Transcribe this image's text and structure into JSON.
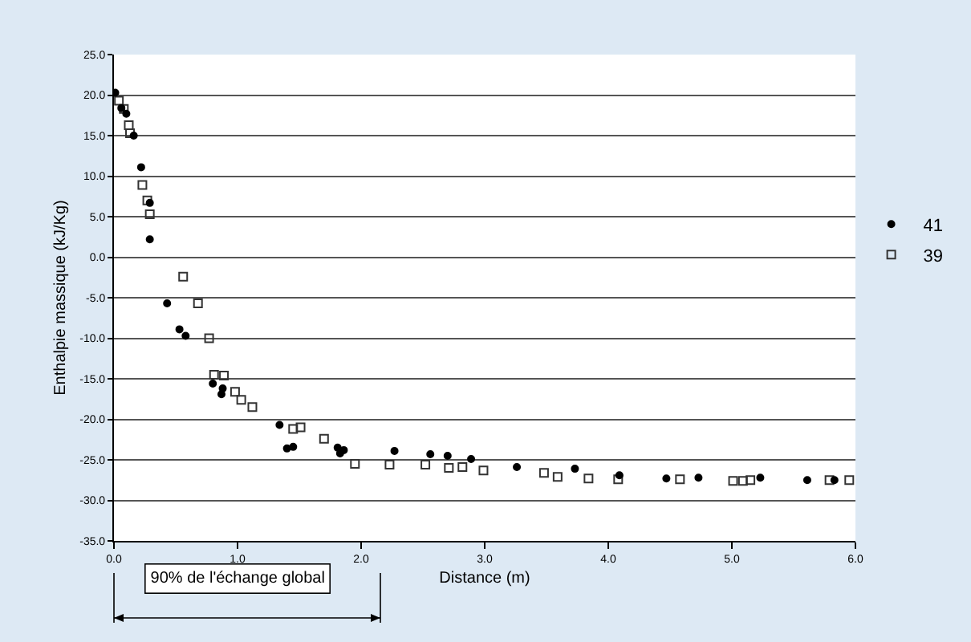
{
  "chart_data": {
    "type": "scatter",
    "xlabel": "Distance (m)",
    "ylabel": "Enthalpie massique (kJ/Kg)",
    "xlim": [
      0,
      6
    ],
    "ylim": [
      -35,
      25
    ],
    "xticks": [
      {
        "value": 0,
        "label": "0.0"
      },
      {
        "value": 1,
        "label": "1.0"
      },
      {
        "value": 2,
        "label": "2.0"
      },
      {
        "value": 3,
        "label": "3.0"
      },
      {
        "value": 4,
        "label": "4.0"
      },
      {
        "value": 5,
        "label": "5.0"
      },
      {
        "value": 6,
        "label": "6.0"
      }
    ],
    "yticks": [
      {
        "value": -35,
        "label": "-35.0"
      },
      {
        "value": -30,
        "label": "-30.0"
      },
      {
        "value": -25,
        "label": "-25.0"
      },
      {
        "value": -20,
        "label": "-20.0"
      },
      {
        "value": -15,
        "label": "-15.0"
      },
      {
        "value": -10,
        "label": "-10.0"
      },
      {
        "value": -5,
        "label": "-5.0"
      },
      {
        "value": 0,
        "label": "0.0"
      },
      {
        "value": 5,
        "label": "5.0"
      },
      {
        "value": 10,
        "label": "10.0"
      },
      {
        "value": 15,
        "label": "15.0"
      },
      {
        "value": 20,
        "label": "20.0"
      },
      {
        "value": 25,
        "label": "25.0"
      }
    ],
    "grid": "y",
    "legend": "right",
    "annotations": [
      "90% de l'échange global"
    ],
    "series": [
      {
        "name": "41",
        "color": "#000000",
        "marker": "circle",
        "x": [
          0.01,
          0.06,
          0.1,
          0.16,
          0.22,
          0.29,
          0.29,
          0.43,
          0.53,
          0.58,
          0.8,
          0.88,
          0.87,
          1.34,
          1.4,
          1.45,
          1.81,
          1.83,
          1.86,
          2.27,
          2.56,
          2.7,
          2.89,
          3.26,
          3.73,
          4.09,
          4.47,
          4.73,
          5.23,
          5.61,
          5.83
        ],
        "values": [
          20.3,
          18.4,
          17.7,
          15.0,
          11.1,
          6.7,
          2.2,
          -5.7,
          -8.9,
          -9.7,
          -15.6,
          -16.2,
          -16.9,
          -20.7,
          -23.6,
          -23.4,
          -23.5,
          -24.2,
          -23.8,
          -23.9,
          -24.3,
          -24.5,
          -24.9,
          -25.9,
          -26.1,
          -26.9,
          -27.3,
          -27.2,
          -27.2,
          -27.5,
          -27.5
        ]
      },
      {
        "name": "39",
        "color": "#333333",
        "marker": "square",
        "x": [
          0.04,
          0.08,
          0.12,
          0.13,
          0.23,
          0.27,
          0.29,
          0.56,
          0.68,
          0.77,
          0.81,
          0.89,
          0.98,
          1.03,
          1.12,
          1.45,
          1.51,
          1.7,
          1.95,
          2.23,
          2.52,
          2.71,
          2.82,
          2.99,
          3.48,
          3.59,
          3.84,
          4.08,
          4.58,
          5.01,
          5.09,
          5.15,
          5.79,
          5.95
        ],
        "values": [
          19.3,
          18.3,
          16.3,
          15.3,
          8.9,
          7.0,
          5.3,
          -2.4,
          -5.7,
          -10.0,
          -14.5,
          -14.6,
          -16.6,
          -17.6,
          -18.5,
          -21.2,
          -21.0,
          -22.4,
          -25.5,
          -25.6,
          -25.6,
          -26.0,
          -25.9,
          -26.3,
          -26.6,
          -27.1,
          -27.3,
          -27.4,
          -27.4,
          -27.6,
          -27.6,
          -27.5,
          -27.5,
          -27.5
        ]
      }
    ]
  }
}
